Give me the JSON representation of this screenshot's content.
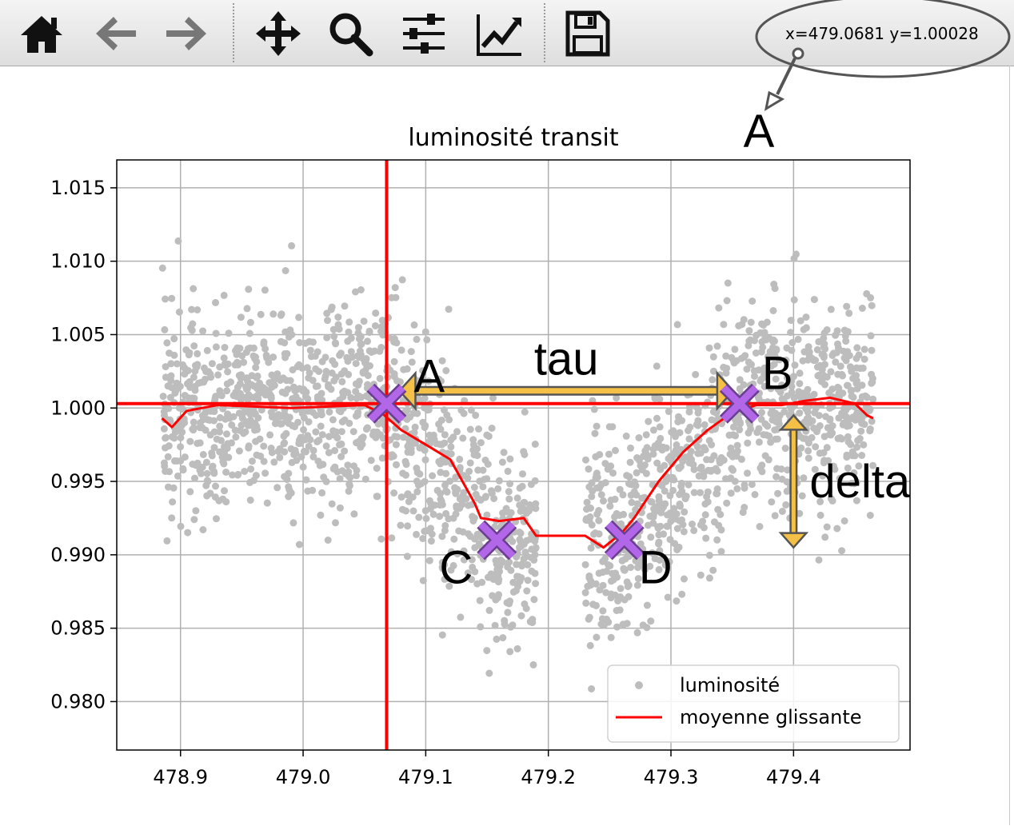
{
  "toolbar": {
    "buttons": [
      {
        "name": "home-icon",
        "label": "home"
      },
      {
        "name": "back-arrow-icon",
        "label": "back"
      },
      {
        "name": "forward-arrow-icon",
        "label": "forward"
      },
      {
        "name": "pan-move-icon",
        "label": "pan"
      },
      {
        "name": "zoom-magnifier-icon",
        "label": "zoom"
      },
      {
        "name": "subplot-sliders-icon",
        "label": "configure subplots"
      },
      {
        "name": "edit-curve-icon",
        "label": "edit axis"
      },
      {
        "name": "save-floppy-icon",
        "label": "save"
      }
    ],
    "coords_text": "x=479.0681 y=1.00028"
  },
  "annotations": {
    "callout_label": "A",
    "point_labels": {
      "A": "A",
      "B": "B",
      "C": "C",
      "D": "D"
    },
    "tau_label": "tau",
    "delta_label": "delta",
    "arrow_color": "#f5c046",
    "marker_color": "#b266e8"
  },
  "chart_data": {
    "type": "scatter",
    "title": "luminosité transit",
    "xlabel": "",
    "ylabel": "",
    "xlim": [
      478.848,
      479.495
    ],
    "ylim": [
      0.9767,
      1.0169
    ],
    "xticks": [
      "478.9",
      "479.0",
      "479.1",
      "479.2",
      "479.3",
      "479.4"
    ],
    "yticks": [
      "0.980",
      "0.985",
      "0.990",
      "0.995",
      "1.000",
      "1.005",
      "1.010",
      "1.015"
    ],
    "grid": true,
    "legend": {
      "placement": "lower-right",
      "entries": [
        "luminosité",
        "moyenne glissante"
      ]
    },
    "series": [
      {
        "name": "luminosité",
        "kind": "scatter",
        "color": "#bdbdbd",
        "profile": {
          "baseline": 1.0,
          "transit_depth": 0.009,
          "ingress": [
            479.068,
            479.16
          ],
          "bottom": [
            479.16,
            479.26
          ],
          "egress": [
            479.26,
            479.355
          ],
          "x_range": [
            478.885,
            479.465
          ],
          "noise_sd": 0.0035
        }
      },
      {
        "name": "moyenne glissante",
        "kind": "line",
        "color": "#ff0000",
        "x": [
          478.885,
          478.893,
          478.905,
          478.93,
          478.96,
          478.99,
          479.02,
          479.05,
          479.065,
          479.08,
          479.1,
          479.12,
          479.14,
          479.145,
          479.16,
          479.18,
          479.19,
          479.2,
          479.23,
          479.245,
          479.26,
          479.27,
          479.29,
          479.31,
          479.33,
          479.35,
          479.37,
          479.39,
          479.41,
          479.43,
          479.45,
          479.46,
          479.465
        ],
        "y": [
          0.9993,
          0.9987,
          0.9998,
          1.0002,
          1.0001,
          1.0,
          1.0001,
          1.0002,
          0.9996,
          0.9985,
          0.9975,
          0.9965,
          0.9935,
          0.9925,
          0.9923,
          0.9925,
          0.9913,
          0.9913,
          0.9913,
          0.9905,
          0.9915,
          0.9925,
          0.995,
          0.997,
          0.9985,
          0.9997,
          1.0002,
          1.0002,
          1.0005,
          1.0007,
          1.0003,
          0.9995,
          0.9993
        ]
      }
    ],
    "reference_lines": {
      "horizontal_y": 1.0003,
      "vertical_x": 479.0681,
      "color": "#ff0000"
    },
    "key_points": [
      {
        "label": "A",
        "x": 479.0681,
        "y": 1.0003
      },
      {
        "label": "B",
        "x": 479.356,
        "y": 1.0003
      },
      {
        "label": "C",
        "x": 479.158,
        "y": 0.991
      },
      {
        "label": "D",
        "x": 479.262,
        "y": 0.991
      }
    ]
  }
}
